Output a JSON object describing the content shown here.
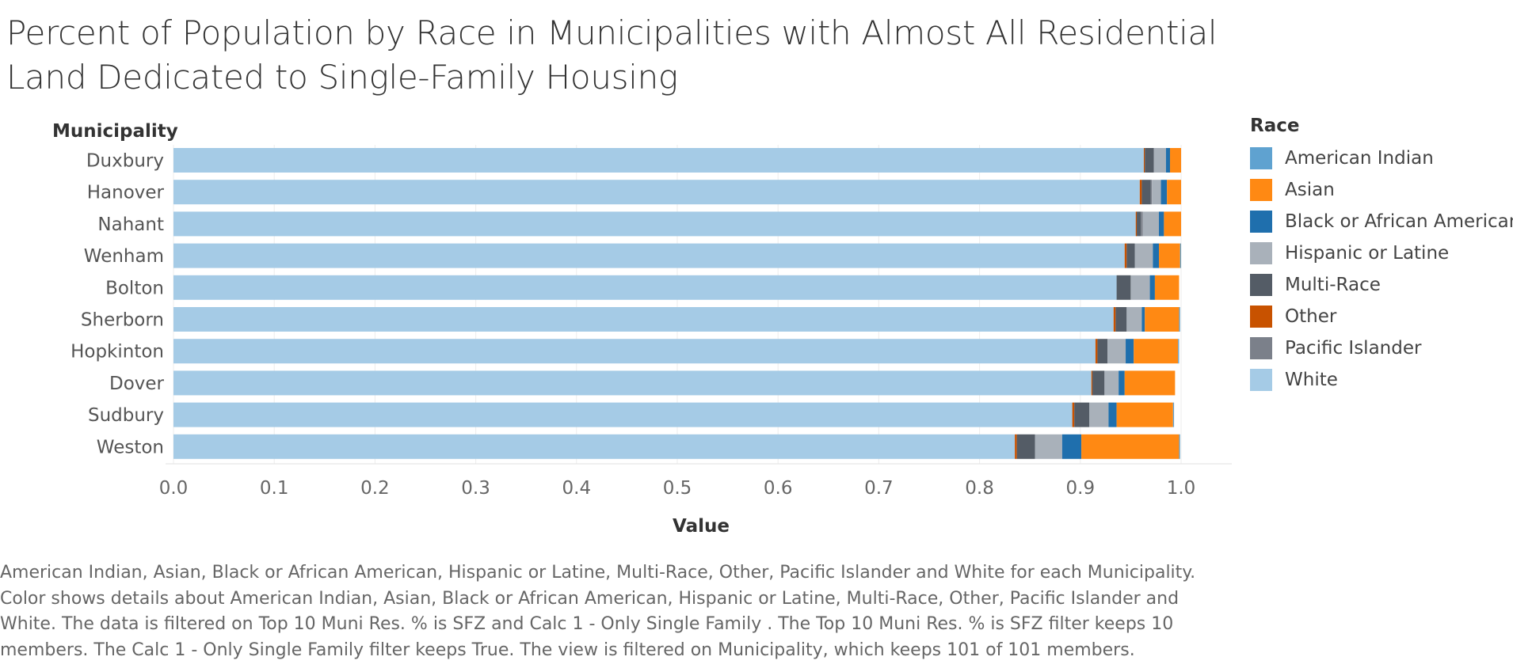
{
  "title": "Percent of Population by Race in Municipalities with Almost All Residential Land Dedicated to Single-Family Housing",
  "caption": "American Indian, Asian, Black or African American, Hispanic or Latine, Multi-Race, Other, Pacific Islander and White for each Municipality. Color shows details about American Indian, Asian, Black or African American, Hispanic or Latine, Multi-Race, Other, Pacific Islander and White. The data is filtered on Top 10 Muni Res. % is SFZ  and Calc 1 - Only Single Family  . The Top 10 Muni Res. % is SFZ  filter keeps 10 members. The Calc 1 - Only Single Family   filter keeps True. The view is filtered on Municipality, which keeps 101 of 101 members.",
  "legend": {
    "title": "Race",
    "items": [
      {
        "label": "American Indian",
        "color": "#5fa2d0"
      },
      {
        "label": "Asian",
        "color": "#ff8913"
      },
      {
        "label": "Black or African American",
        "color": "#1f6fad"
      },
      {
        "label": "Hispanic or Latine",
        "color": "#a9b1ba"
      },
      {
        "label": "Multi-Race",
        "color": "#545c66"
      },
      {
        "label": "Other",
        "color": "#c85200"
      },
      {
        "label": "Pacific Islander",
        "color": "#7b808a"
      },
      {
        "label": "White",
        "color": "#a5cbe6"
      }
    ]
  },
  "chart_data": {
    "type": "bar",
    "orientation": "horizontal",
    "stacked": true,
    "row_header": "Municipality",
    "xlabel": "Value",
    "ylabel": "",
    "xlim": [
      0,
      1.0
    ],
    "x_ticks": [
      "0.0",
      "0.1",
      "0.2",
      "0.3",
      "0.4",
      "0.5",
      "0.6",
      "0.7",
      "0.8",
      "0.9",
      "1.0"
    ],
    "grid": true,
    "legend_position": "right",
    "categories": [
      "Duxbury",
      "Hanover",
      "Nahant",
      "Wenham",
      "Bolton",
      "Sherborn",
      "Hopkinton",
      "Dover",
      "Sudbury",
      "Weston"
    ],
    "stack_order": [
      "White",
      "Other",
      "Multi-Race",
      "Pacific Islander",
      "Hispanic or Latine",
      "Black or African American",
      "Asian",
      "American Indian"
    ],
    "series": [
      {
        "name": "White",
        "color": "#a5cbe6",
        "values": [
          0.963,
          0.959,
          0.955,
          0.944,
          0.936,
          0.933,
          0.915,
          0.911,
          0.892,
          0.835
        ]
      },
      {
        "name": "Other",
        "color": "#c85200",
        "values": [
          0.001,
          0.002,
          0.001,
          0.002,
          0.0,
          0.002,
          0.002,
          0.001,
          0.002,
          0.002
        ]
      },
      {
        "name": "Multi-Race",
        "color": "#545c66",
        "values": [
          0.009,
          0.009,
          0.004,
          0.008,
          0.014,
          0.011,
          0.01,
          0.012,
          0.015,
          0.018
        ]
      },
      {
        "name": "Pacific Islander",
        "color": "#7b808a",
        "values": [
          0.0,
          0.001,
          0.002,
          0.0,
          0.0,
          0.0,
          0.0,
          0.0,
          0.0,
          0.0
        ]
      },
      {
        "name": "Hispanic or Latine",
        "color": "#a9b1ba",
        "values": [
          0.012,
          0.009,
          0.016,
          0.018,
          0.019,
          0.015,
          0.018,
          0.014,
          0.019,
          0.027
        ]
      },
      {
        "name": "Black or African American",
        "color": "#1f6fad",
        "values": [
          0.004,
          0.006,
          0.005,
          0.006,
          0.005,
          0.003,
          0.008,
          0.006,
          0.008,
          0.019
        ]
      },
      {
        "name": "Asian",
        "color": "#ff8913",
        "values": [
          0.011,
          0.014,
          0.017,
          0.021,
          0.024,
          0.034,
          0.044,
          0.05,
          0.056,
          0.097
        ]
      },
      {
        "name": "American Indian",
        "color": "#5fa2d0",
        "values": [
          0.0,
          0.0,
          0.0,
          0.001,
          0.0,
          0.001,
          0.001,
          0.0,
          0.001,
          0.001
        ]
      }
    ]
  }
}
